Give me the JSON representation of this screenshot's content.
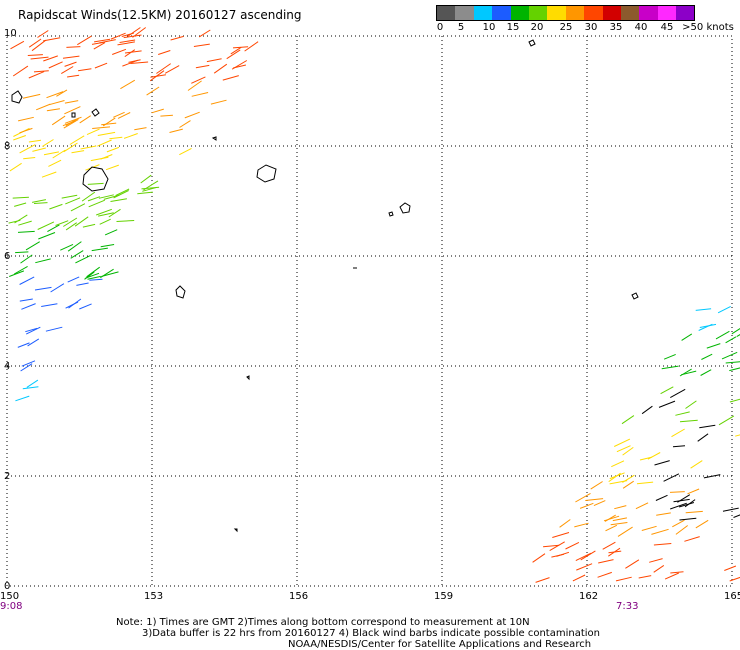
{
  "title": "Rapidscat Winds(12.5KM) 20160127 ascending",
  "legend": {
    "labels": [
      "0",
      "5",
      "10",
      "15",
      "20",
      "25",
      "30",
      "35",
      "40",
      "45",
      ">50 knots"
    ],
    "colors": [
      "#555555",
      "#8c8c8c",
      "#00c8ff",
      "#1c5cff",
      "#00b400",
      "#64d200",
      "#ffdc00",
      "#ff9600",
      "#ff4600",
      "#d20000",
      "#8c5a2d",
      "#c800c8",
      "#ff28ff",
      "#8c00c8"
    ]
  },
  "axes": {
    "x_ticks": [
      "150",
      "153",
      "156",
      "159",
      "162",
      "165"
    ],
    "y_ticks": [
      "10",
      "8",
      "6",
      "4",
      "2",
      "0"
    ],
    "x_range": [
      150,
      165
    ],
    "y_range": [
      0,
      10
    ],
    "grid": "dotted"
  },
  "times": {
    "left": "9:08",
    "right": "7:33"
  },
  "notes": {
    "line1": "Note: 1) Times are GMT 2)Times along bottom correspond to measurement at 10N",
    "line2": "3)Data buffer is 22 hrs from 20160127 4) Black wind barbs indicate possible contamination",
    "line3": "NOAA/NESDIS/Center for Satellite Applications and Research"
  },
  "swaths": [
    {
      "name": "west-swath",
      "coverage_lon_range_top": [
        150,
        155
      ],
      "coverage_lon_range_bottom": [
        150,
        150
      ]
    },
    {
      "name": "east-swath",
      "coverage_lon_range_top": [
        165,
        165
      ],
      "coverage_lon_range_bottom": [
        160.5,
        165
      ]
    }
  ]
}
